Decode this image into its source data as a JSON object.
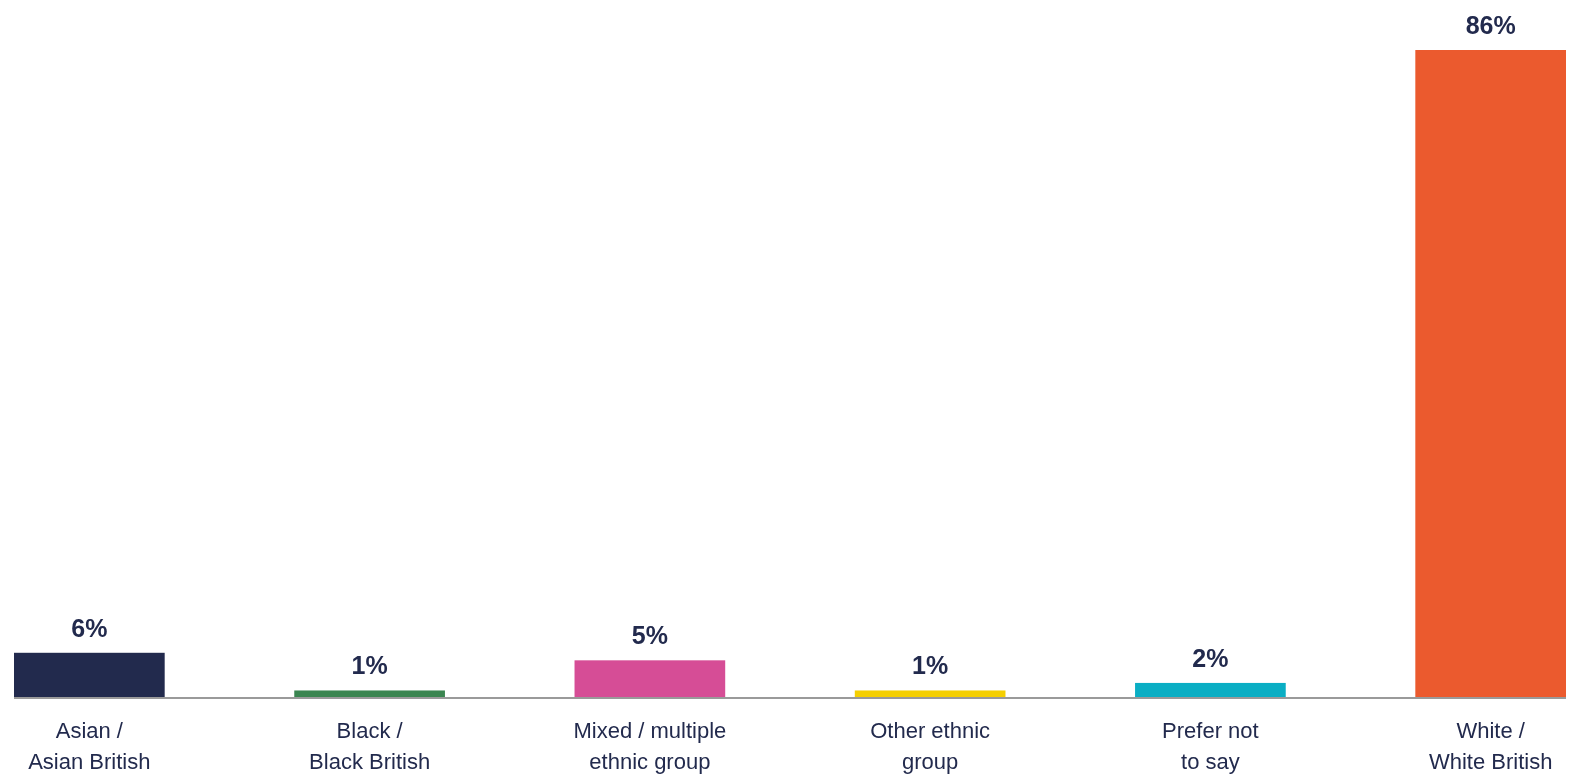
{
  "chart_data": {
    "type": "bar",
    "categories": [
      "Asian /\nAsian British",
      "Black /\nBlack British",
      "Mixed / multiple\nethnic group",
      "Other ethnic\ngroup",
      "Prefer not\nto say",
      "White /\nWhite British"
    ],
    "values": [
      6,
      1,
      5,
      1,
      2,
      86
    ],
    "colors": [
      "#222a4d",
      "#3a8550",
      "#d64d96",
      "#f5cf00",
      "#0aaec4",
      "#eb5a2e"
    ],
    "value_labels": [
      "6%",
      "1%",
      "5%",
      "1%",
      "2%",
      "86%"
    ]
  }
}
